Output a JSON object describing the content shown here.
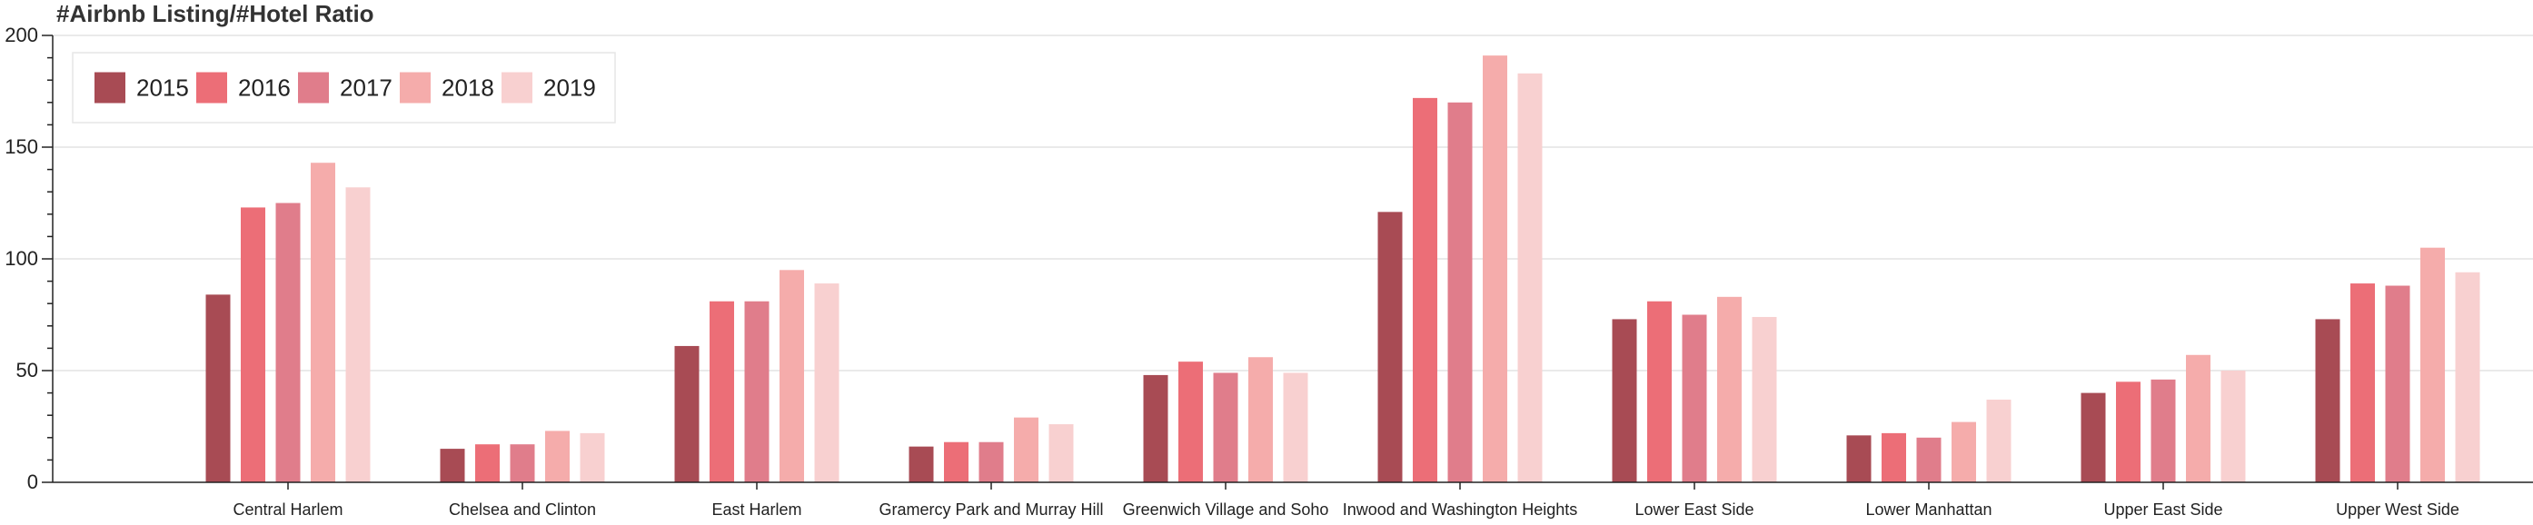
{
  "chart_data": {
    "type": "bar",
    "title": "#Airbnb Listing/#Hotel Ratio",
    "xlabel": "",
    "ylabel": "",
    "ylim": [
      0,
      200
    ],
    "yticks": [
      0,
      50,
      100,
      150,
      200
    ],
    "grid": true,
    "legend_position": "top-left",
    "categories": [
      "Central Harlem",
      "Chelsea and Clinton",
      "East Harlem",
      "Gramercy Park and Murray Hill",
      "Greenwich Village and Soho",
      "Inwood and Washington Heights",
      "Lower East Side",
      "Lower Manhattan",
      "Upper East Side",
      "Upper West Side"
    ],
    "series": [
      {
        "name": "2015",
        "color": "#a84b54",
        "values": [
          84,
          15,
          61,
          16,
          48,
          121,
          73,
          21,
          40,
          73
        ]
      },
      {
        "name": "2016",
        "color": "#ec6e77",
        "values": [
          123,
          17,
          81,
          18,
          54,
          172,
          81,
          22,
          45,
          89
        ]
      },
      {
        "name": "2017",
        "color": "#e07d8b",
        "values": [
          125,
          17,
          81,
          18,
          49,
          170,
          75,
          20,
          46,
          88
        ]
      },
      {
        "name": "2018",
        "color": "#f5acab",
        "values": [
          143,
          23,
          95,
          29,
          56,
          191,
          83,
          27,
          57,
          105
        ]
      },
      {
        "name": "2019",
        "color": "#f8d0d0",
        "values": [
          132,
          22,
          89,
          26,
          49,
          183,
          74,
          37,
          50,
          94
        ]
      }
    ]
  }
}
